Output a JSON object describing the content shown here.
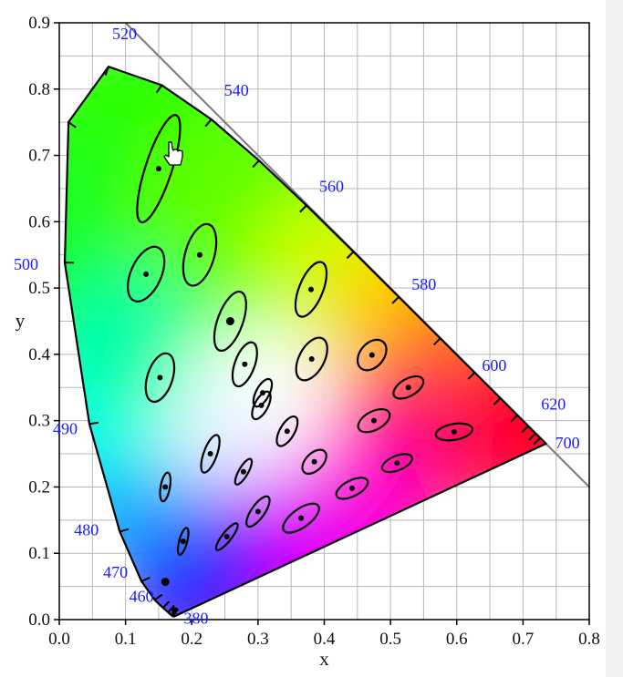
{
  "chart_data": {
    "type": "scatter",
    "xlabel": "x",
    "ylabel": "y",
    "xlim": [
      0,
      0.8
    ],
    "ylim": [
      0,
      0.9
    ],
    "x_ticks": [
      "0.0",
      "0.1",
      "0.2",
      "0.3",
      "0.4",
      "0.5",
      "0.6",
      "0.7",
      "0.8"
    ],
    "y_ticks": [
      "0.0",
      "0.1",
      "0.2",
      "0.3",
      "0.4",
      "0.5",
      "0.6",
      "0.7",
      "0.8",
      "0.9"
    ],
    "grid": true,
    "minor_grid_step": 0.05,
    "colors": {
      "locus_label": "#1a1aff",
      "ellipse": "#000000",
      "grid": "#b8b8b8"
    },
    "spectral_locus": [
      [
        0.1741,
        0.005
      ],
      [
        0.1738,
        0.0049
      ],
      [
        0.1733,
        0.0048
      ],
      [
        0.1726,
        0.0048
      ],
      [
        0.1714,
        0.0051
      ],
      [
        0.1689,
        0.0069
      ],
      [
        0.1644,
        0.0109
      ],
      [
        0.1566,
        0.0177
      ],
      [
        0.144,
        0.0297
      ],
      [
        0.1241,
        0.0578
      ],
      [
        0.0913,
        0.1327
      ],
      [
        0.0454,
        0.295
      ],
      [
        0.0082,
        0.5384
      ],
      [
        0.0139,
        0.7502
      ],
      [
        0.0743,
        0.8338
      ],
      [
        0.1547,
        0.8059
      ],
      [
        0.2296,
        0.7543
      ],
      [
        0.3016,
        0.6923
      ],
      [
        0.3731,
        0.6245
      ],
      [
        0.4441,
        0.5547
      ],
      [
        0.5125,
        0.4866
      ],
      [
        0.5752,
        0.4242
      ],
      [
        0.627,
        0.3725
      ],
      [
        0.6658,
        0.334
      ],
      [
        0.6915,
        0.3083
      ],
      [
        0.7079,
        0.292
      ],
      [
        0.719,
        0.2809
      ],
      [
        0.726,
        0.274
      ],
      [
        0.7347,
        0.2653
      ]
    ],
    "wavelength_labels": [
      {
        "text": "380",
        "x": 0.1741,
        "y": 0.005
      },
      {
        "text": "460",
        "x": 0.144,
        "y": 0.0297
      },
      {
        "text": "470",
        "x": 0.1241,
        "y": 0.0578
      },
      {
        "text": "480",
        "x": 0.0913,
        "y": 0.1327
      },
      {
        "text": "490",
        "x": 0.0454,
        "y": 0.295
      },
      {
        "text": "500",
        "x": 0.0082,
        "y": 0.5384
      },
      {
        "text": "520",
        "x": 0.0743,
        "y": 0.8338
      },
      {
        "text": "540",
        "x": 0.2296,
        "y": 0.7543
      },
      {
        "text": "560",
        "x": 0.3731,
        "y": 0.6245
      },
      {
        "text": "580",
        "x": 0.5125,
        "y": 0.4866
      },
      {
        "text": "600",
        "x": 0.627,
        "y": 0.3725
      },
      {
        "text": "620",
        "x": 0.6915,
        "y": 0.3083
      },
      {
        "text": "700",
        "x": 0.7347,
        "y": 0.2653
      }
    ],
    "ellipses": [
      {
        "x": 0.16,
        "y": 0.057,
        "a": 0.0008,
        "b": 0.0008,
        "angle": 0
      },
      {
        "x": 0.187,
        "y": 0.118,
        "a": 0.021,
        "b": 0.006,
        "angle": 75
      },
      {
        "x": 0.253,
        "y": 0.125,
        "a": 0.025,
        "b": 0.007,
        "angle": 52
      },
      {
        "x": 0.15,
        "y": 0.68,
        "a": 0.085,
        "b": 0.02,
        "angle": 72
      },
      {
        "x": 0.131,
        "y": 0.521,
        "a": 0.044,
        "b": 0.023,
        "angle": 66
      },
      {
        "x": 0.212,
        "y": 0.55,
        "a": 0.048,
        "b": 0.022,
        "angle": 74
      },
      {
        "x": 0.258,
        "y": 0.45,
        "a": 0.047,
        "b": 0.019,
        "angle": 70
      },
      {
        "x": 0.152,
        "y": 0.365,
        "a": 0.038,
        "b": 0.019,
        "angle": 72
      },
      {
        "x": 0.28,
        "y": 0.385,
        "a": 0.035,
        "b": 0.015,
        "angle": 70
      },
      {
        "x": 0.38,
        "y": 0.498,
        "a": 0.044,
        "b": 0.018,
        "angle": 68
      },
      {
        "x": 0.381,
        "y": 0.393,
        "a": 0.035,
        "b": 0.019,
        "angle": 62
      },
      {
        "x": 0.307,
        "y": 0.342,
        "a": 0.023,
        "b": 0.01,
        "angle": 62
      },
      {
        "x": 0.305,
        "y": 0.323,
        "a": 0.023,
        "b": 0.01,
        "angle": 62
      },
      {
        "x": 0.385,
        "y": 0.238,
        "a": 0.022,
        "b": 0.013,
        "angle": 45
      },
      {
        "x": 0.472,
        "y": 0.399,
        "a": 0.026,
        "b": 0.018,
        "angle": 50
      },
      {
        "x": 0.527,
        "y": 0.35,
        "a": 0.025,
        "b": 0.013,
        "angle": 30
      },
      {
        "x": 0.475,
        "y": 0.3,
        "a": 0.026,
        "b": 0.014,
        "angle": 28
      },
      {
        "x": 0.51,
        "y": 0.236,
        "a": 0.024,
        "b": 0.011,
        "angle": 22
      },
      {
        "x": 0.596,
        "y": 0.283,
        "a": 0.028,
        "b": 0.012,
        "angle": 10
      },
      {
        "x": 0.16,
        "y": 0.2,
        "a": 0.022,
        "b": 0.007,
        "angle": 80
      },
      {
        "x": 0.228,
        "y": 0.25,
        "a": 0.03,
        "b": 0.01,
        "angle": 70
      },
      {
        "x": 0.258,
        "y": 0.45,
        "a": 0.0008,
        "b": 0.0008,
        "angle": 0
      },
      {
        "x": 0.278,
        "y": 0.223,
        "a": 0.022,
        "b": 0.007,
        "angle": 60
      },
      {
        "x": 0.3,
        "y": 0.163,
        "a": 0.027,
        "b": 0.01,
        "angle": 55
      },
      {
        "x": 0.365,
        "y": 0.153,
        "a": 0.032,
        "b": 0.014,
        "angle": 36
      },
      {
        "x": 0.442,
        "y": 0.198,
        "a": 0.026,
        "b": 0.012,
        "angle": 27
      },
      {
        "x": 0.344,
        "y": 0.284,
        "a": 0.025,
        "b": 0.011,
        "angle": 60
      }
    ]
  }
}
